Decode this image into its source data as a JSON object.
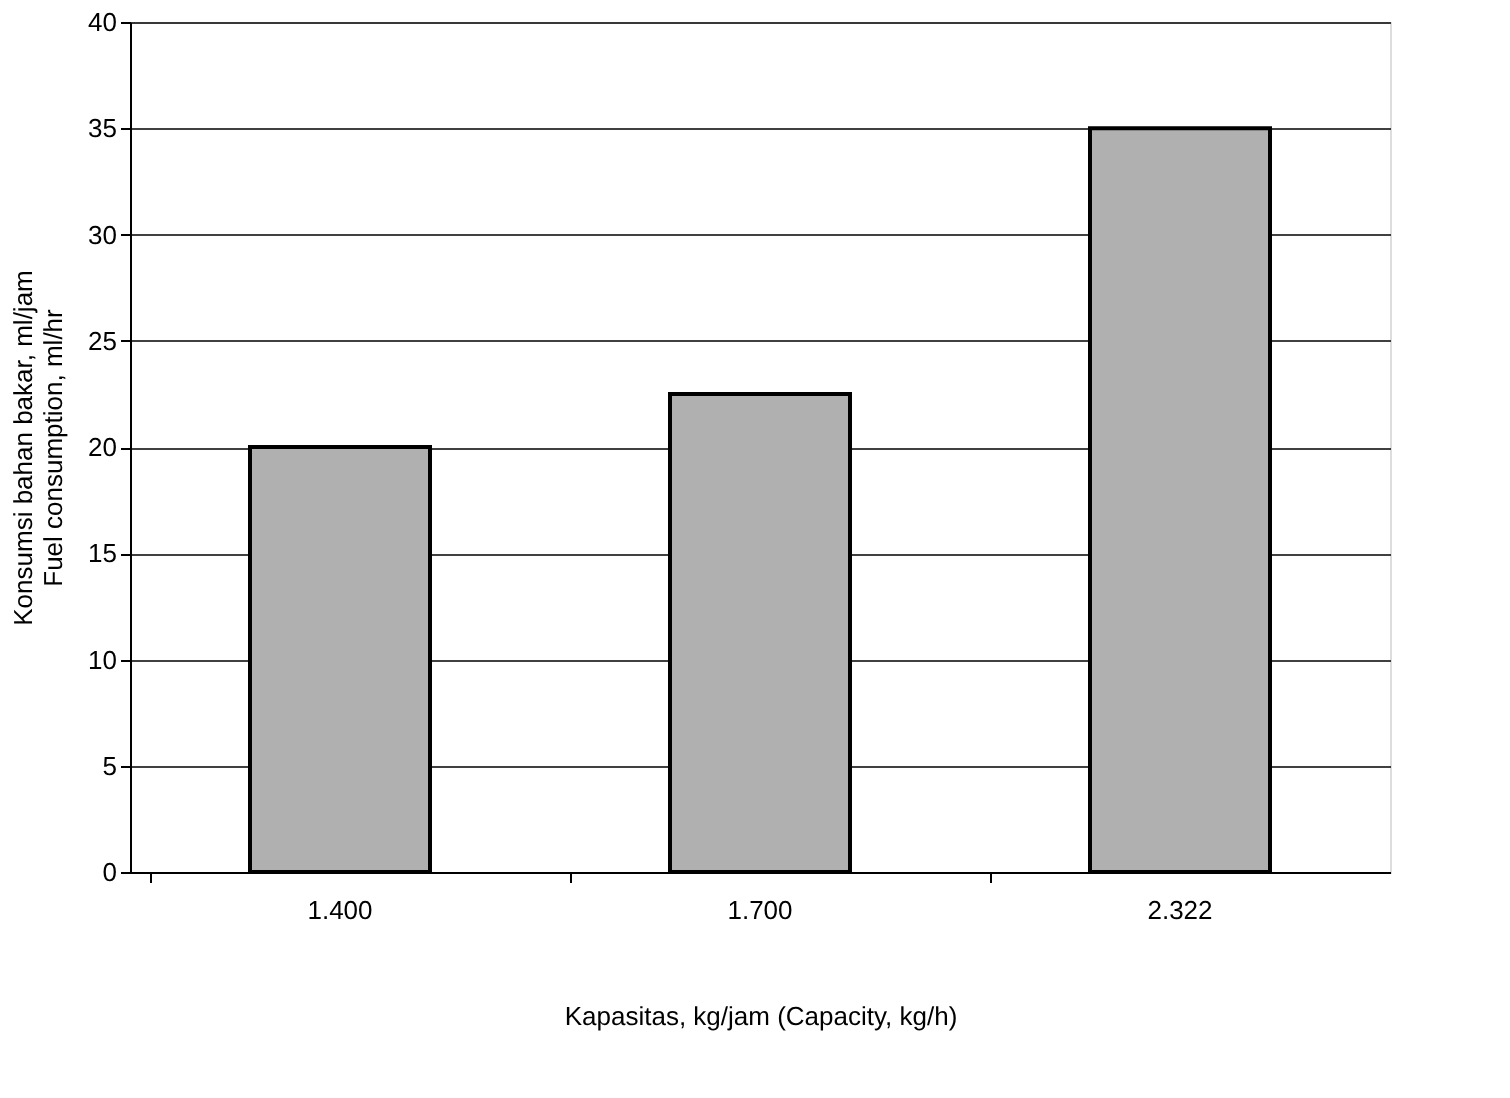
{
  "chart_data": {
    "type": "bar",
    "categories": [
      "1.400",
      "1.700",
      "2.322"
    ],
    "values": [
      20,
      22.5,
      35
    ],
    "color": "#b0b0b0",
    "xlabel": "Kapasitas, kg/jam (Capacity, kg/h)",
    "ylabel": "Konsumsi bahan bakar, ml/jam\nFuel consumption, ml/hr",
    "ylim": [
      0,
      40
    ],
    "yticks": [
      0,
      5,
      10,
      15,
      20,
      25,
      30,
      35,
      40
    ],
    "grid": "y"
  }
}
